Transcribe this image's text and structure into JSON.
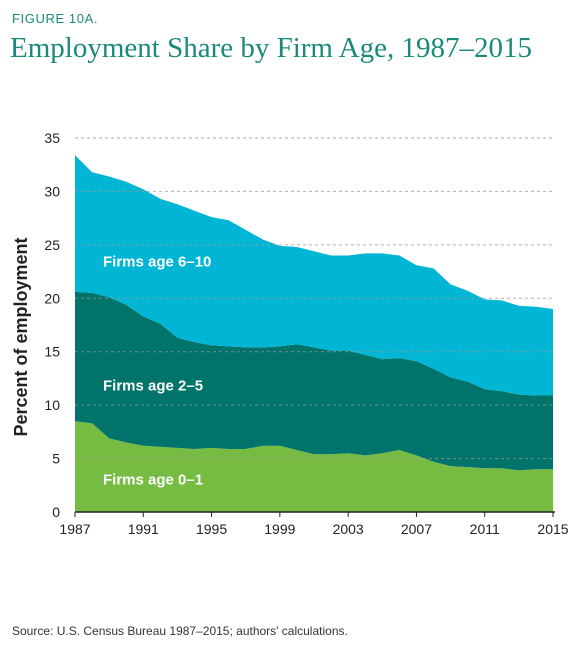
{
  "figure_label": "FIGURE 10A.",
  "source": "Source: U.S. Census Bureau 1987–2015; authors' calculations.",
  "colors": {
    "title": "#1a8a7a",
    "band_0_1": "#76bc43",
    "band_2_5": "#00736a",
    "band_6_10": "#00b6d4",
    "gridline": "#999999"
  },
  "chart_data": {
    "type": "area",
    "stacked": true,
    "title": "Employment Share by Firm Age, 1987–2015",
    "xlabel": "",
    "ylabel": "Percent of employment",
    "xlim": [
      1987,
      2015
    ],
    "ylim": [
      0,
      35
    ],
    "xticks": [
      1987,
      1991,
      1995,
      1999,
      2003,
      2007,
      2011,
      2015
    ],
    "yticks": [
      0,
      5,
      10,
      15,
      20,
      25,
      30,
      35
    ],
    "grid": "horizontal dashed",
    "legend": "labels inside areas",
    "x": [
      1987,
      1988,
      1989,
      1990,
      1991,
      1992,
      1993,
      1994,
      1995,
      1996,
      1997,
      1998,
      1999,
      2000,
      2001,
      2002,
      2003,
      2004,
      2005,
      2006,
      2007,
      2008,
      2009,
      2010,
      2011,
      2012,
      2013,
      2014,
      2015
    ],
    "series": [
      {
        "name": "Firms age 0–1",
        "color": "#76bc43",
        "values": [
          8.5,
          8.3,
          6.9,
          6.5,
          6.2,
          6.1,
          6.0,
          5.9,
          6.0,
          5.9,
          5.9,
          6.2,
          6.2,
          5.8,
          5.4,
          5.4,
          5.5,
          5.3,
          5.5,
          5.8,
          5.3,
          4.7,
          4.3,
          4.2,
          4.1,
          4.1,
          3.9,
          4.0,
          4.0
        ]
      },
      {
        "name": "Firms age 2–5",
        "color": "#00736a",
        "values": [
          12.1,
          12.2,
          13.2,
          12.9,
          12.1,
          11.5,
          10.3,
          10.0,
          9.6,
          9.6,
          9.5,
          9.2,
          9.3,
          9.9,
          10.0,
          9.7,
          9.6,
          9.4,
          8.8,
          8.6,
          8.8,
          8.7,
          8.3,
          8.0,
          7.4,
          7.2,
          7.1,
          6.9,
          6.9
        ]
      },
      {
        "name": "Firms age 6–10",
        "color": "#00b6d4",
        "values": [
          12.8,
          11.3,
          11.3,
          11.5,
          11.9,
          11.7,
          12.5,
          12.3,
          12.0,
          11.8,
          11.0,
          10.1,
          9.4,
          9.1,
          9.0,
          8.9,
          8.9,
          9.5,
          9.9,
          9.6,
          9.0,
          9.4,
          8.7,
          8.5,
          8.4,
          8.5,
          8.3,
          8.3,
          8.1
        ]
      }
    ]
  }
}
